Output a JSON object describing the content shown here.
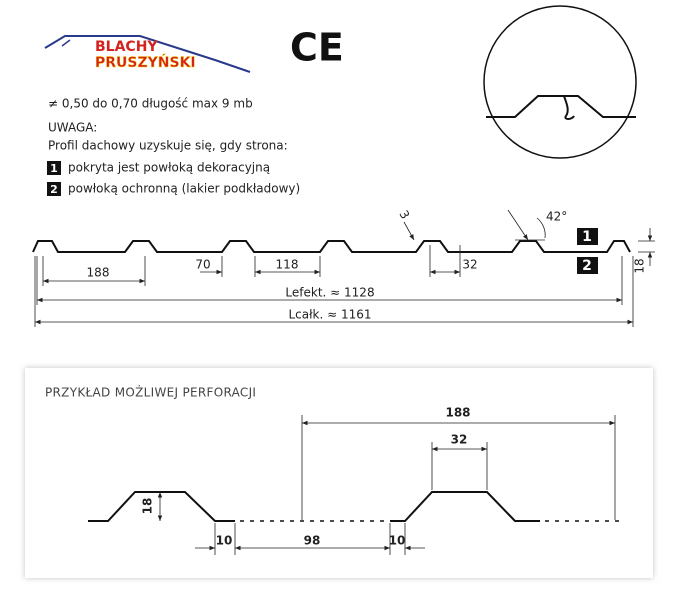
{
  "logo": {
    "line1": "BLACHY",
    "line2": "PRUSZYŃSKI"
  },
  "ce_mark": "CE",
  "spec": "≠ 0,50  do 0,70 długość max 9 mb",
  "note": {
    "title": "UWAGA:",
    "text": "Profil dachowy uzyskuje się, gdy strona:",
    "items": [
      {
        "num": "1",
        "text": "pokryta jest powłoką dekoracyjną"
      },
      {
        "num": "2",
        "text": "powłoką ochronną (lakier podkładowy)"
      }
    ]
  },
  "profile": {
    "radius": "3",
    "angle": "42°",
    "pitch": "188",
    "bottom_flat": "70",
    "gap": "118",
    "top_width": "32",
    "height": "18",
    "side_top": "1",
    "side_bottom": "2",
    "effective_length": "Lefekt. ≈ 1128",
    "total_length": "Lcałk. ≈ 1161"
  },
  "perforation": {
    "title": "PRZYKŁAD MOŻLIWEJ PERFORACJI",
    "pitch": "188",
    "top_width": "32",
    "height": "18",
    "edge_left": "10",
    "middle": "98",
    "edge_right": "10"
  }
}
